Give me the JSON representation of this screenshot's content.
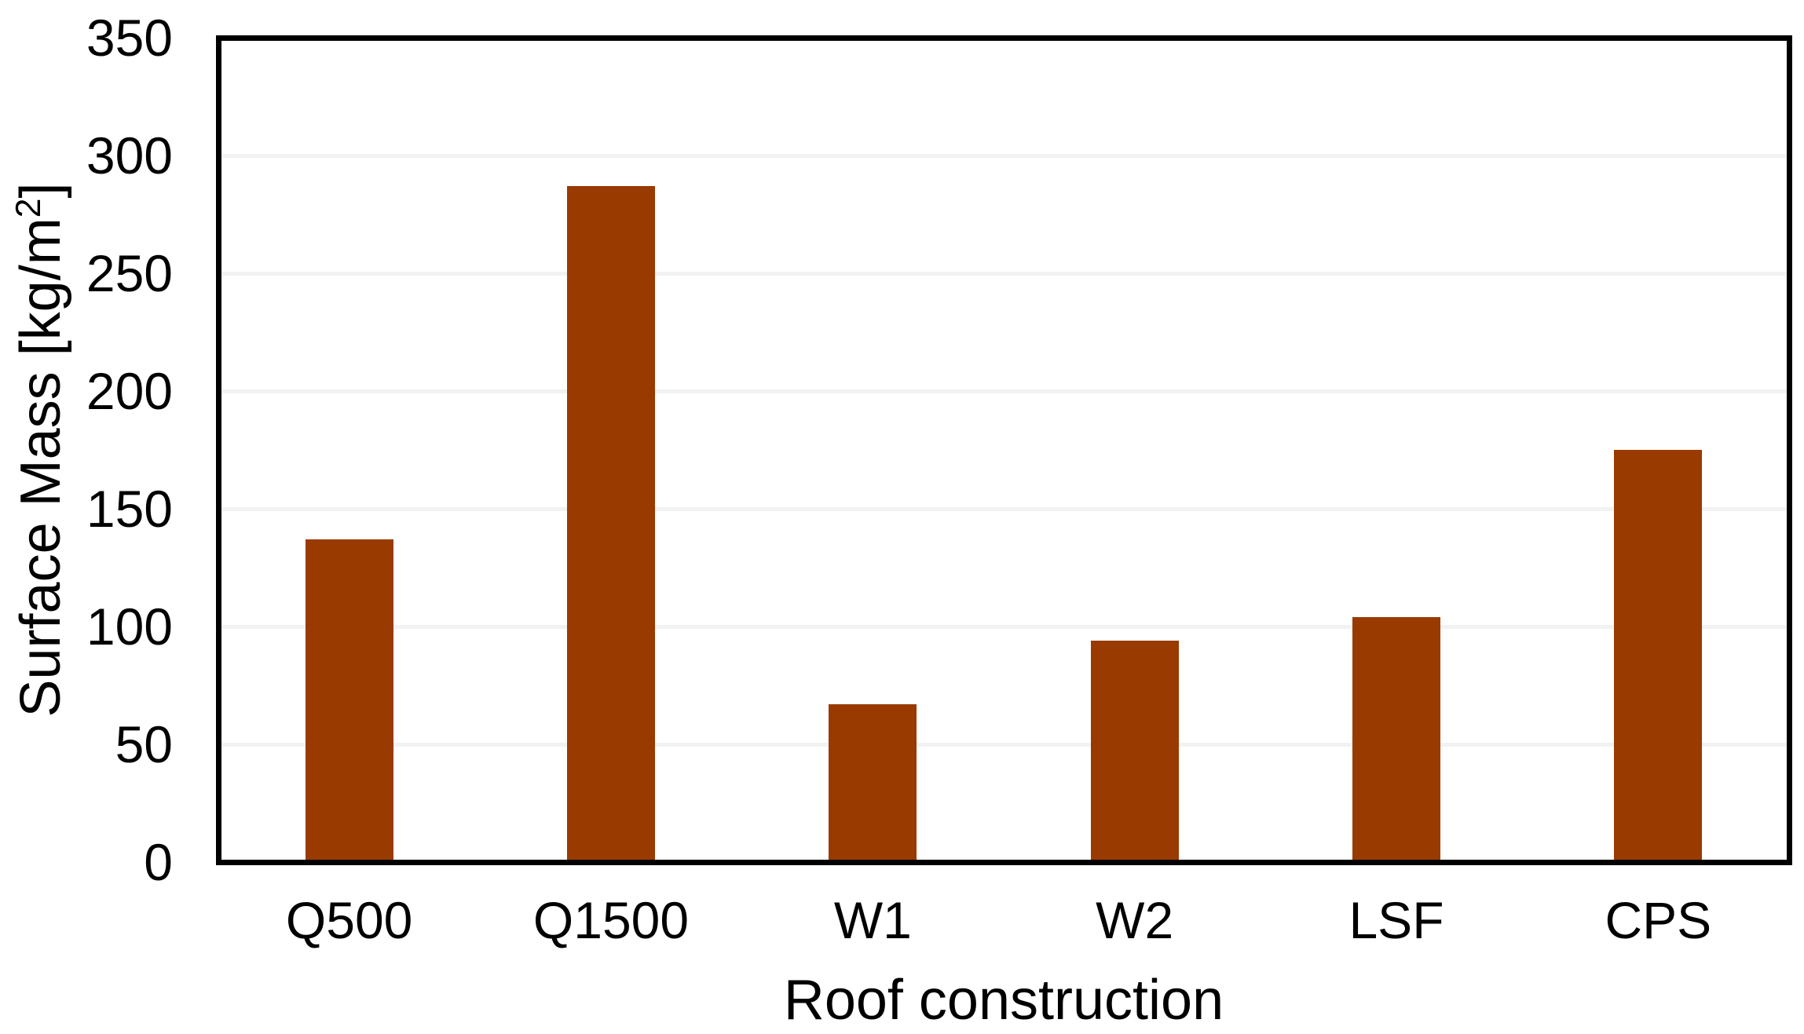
{
  "figure": {
    "background_color": "#FFFFFF",
    "plot_border_color": "#000000",
    "gridline_color": "#F2F2F2",
    "bar_color": "#993A01",
    "text_color": "#000000"
  },
  "chart_data": {
    "type": "bar",
    "title": "",
    "categories": [
      "Q500",
      "Q1500",
      "W1",
      "W2",
      "LSF",
      "CPS"
    ],
    "values": [
      137,
      287,
      67,
      94,
      104,
      175
    ],
    "series_name": "Surface Mass",
    "xlabel": "Roof construction",
    "ylabel": "Surface Mass [kg/m²]",
    "ylabel_parts": {
      "prefix": "Surface Mass [kg/m",
      "sup": "2",
      "suffix": "]"
    },
    "ylim": [
      0,
      350
    ],
    "ytick_step": 50,
    "yticks": [
      0,
      50,
      100,
      150,
      200,
      250,
      300,
      350
    ],
    "grid": "horizontal-major",
    "legend": "none"
  }
}
